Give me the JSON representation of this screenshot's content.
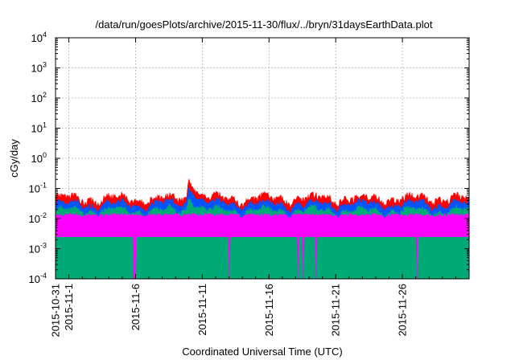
{
  "chart_data": {
    "type": "area",
    "title": "/data/run/goesPlots/archive/2015-11-30/flux/../bryn/31daysEarthData.plot",
    "xlabel": "Coordinated Universal Time (UTC)",
    "ylabel": "cGy/day",
    "yscale": "log",
    "ylim": [
      0.0001,
      10000
    ],
    "xlim": [
      "2015-10-31",
      "2015-12-01"
    ],
    "grid": true,
    "legend": "none",
    "x_ticks": [
      "2015-10-31",
      "2015-11-1",
      "2015-11-6",
      "2015-11-11",
      "2015-11-16",
      "2015-11-21",
      "2015-11-26"
    ],
    "x_tick_days": [
      0,
      1,
      6,
      11,
      16,
      21,
      26
    ],
    "y_ticks": [
      {
        "value": 0.0001,
        "base": "10",
        "exp": "-4"
      },
      {
        "value": 0.001,
        "base": "10",
        "exp": "-3"
      },
      {
        "value": 0.01,
        "base": "10",
        "exp": "-2"
      },
      {
        "value": 0.1,
        "base": "10",
        "exp": "-1"
      },
      {
        "value": 1,
        "base": "10",
        "exp": "0"
      },
      {
        "value": 10,
        "base": "10",
        "exp": "1"
      },
      {
        "value": 100,
        "base": "10",
        "exp": "2"
      },
      {
        "value": 1000,
        "base": "10",
        "exp": "3"
      },
      {
        "value": 10000,
        "base": "10",
        "exp": "4"
      }
    ],
    "series": [
      {
        "color": "#ff0000",
        "typical": 0.045,
        "peak": {
          "day": 10.0,
          "value": 0.2
        }
      },
      {
        "color": "#0055ff",
        "typical": 0.03,
        "peak": {
          "day": 10.0,
          "value": 0.12
        }
      },
      {
        "color": "#00aa77",
        "typical": 0.018,
        "peak": {
          "day": 10.0,
          "value": 0.05
        }
      },
      {
        "color": "#ff00ff",
        "typical": 0.003,
        "floor": 0.0025,
        "dropouts": [
          {
            "start": 5.85,
            "end": 6.0,
            "value": 0.0001
          },
          {
            "start": 13.0,
            "end": 13.08,
            "value": 0.0001
          },
          {
            "start": 18.1,
            "end": 18.18,
            "value": 0.0001
          },
          {
            "start": 18.55,
            "end": 18.63,
            "value": 0.0001
          },
          {
            "start": 19.5,
            "end": 19.58,
            "value": 0.0001
          },
          {
            "start": 27.05,
            "end": 27.13,
            "value": 0.0001
          }
        ]
      }
    ],
    "colors": {
      "axis": "#000000",
      "grid": "#a0a0a0"
    }
  }
}
